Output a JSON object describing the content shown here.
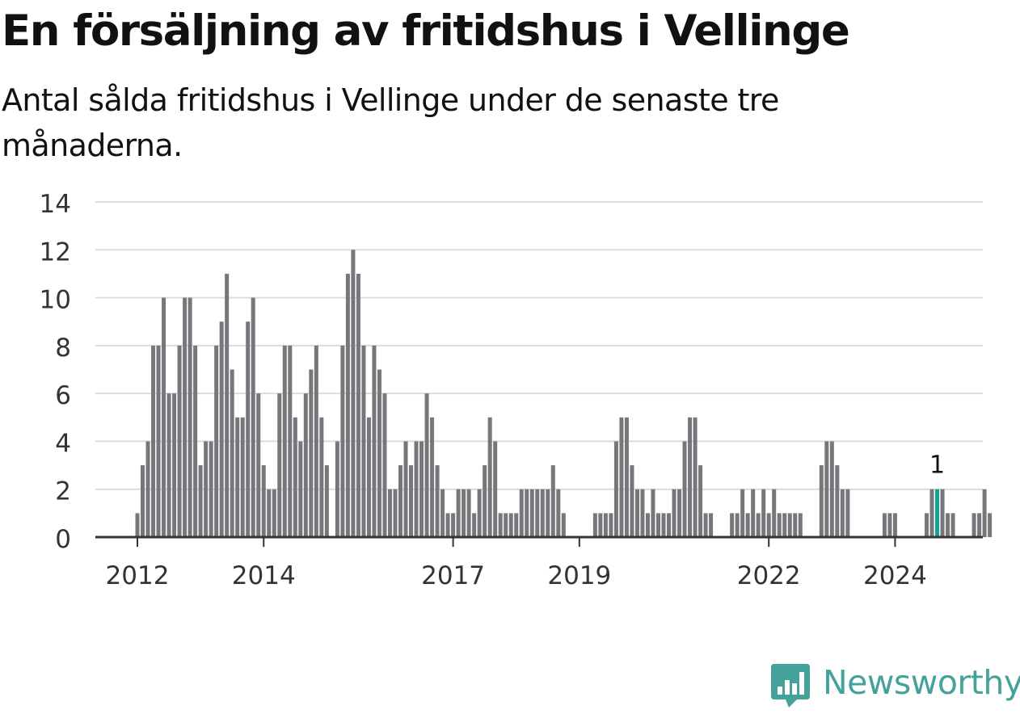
{
  "title": "En försäljning av fritidshus i Vellinge",
  "subtitle": "Antal sålda fritidshus i Vellinge under de senaste tre månaderna.",
  "brand": {
    "name": "Newsworthy",
    "color": "#45a29a",
    "icon": "newsworthy-chart-badge-icon"
  },
  "chart_data": {
    "type": "bar",
    "title": "En försäljning av fritidshus i Vellinge",
    "subtitle": "Antal sålda fritidshus i Vellinge under de senaste tre månaderna.",
    "xlabel": "",
    "ylabel": "",
    "ylim": [
      0,
      14
    ],
    "yticks": [
      0,
      2,
      4,
      6,
      8,
      10,
      12,
      14
    ],
    "grid": true,
    "legend": "none",
    "x_start": "2012-01",
    "x_end": "2024-09",
    "xtick_labels": [
      {
        "label": "2012",
        "date": "2012-01"
      },
      {
        "label": "2014",
        "date": "2014-01"
      },
      {
        "label": "2017",
        "date": "2017-01"
      },
      {
        "label": "2019",
        "date": "2019-01"
      },
      {
        "label": "2022",
        "date": "2022-01"
      },
      {
        "label": "2024",
        "date": "2024-01"
      }
    ],
    "colors": {
      "bar": "#76767b",
      "highlight": "#17a094",
      "grid": "#dcdcdc",
      "axis": "#333333"
    },
    "annotation": {
      "date": "2024-09",
      "text": "1"
    },
    "highlight_date": "2024-09",
    "values": [
      1,
      3,
      4,
      8,
      8,
      10,
      6,
      6,
      8,
      10,
      10,
      8,
      3,
      4,
      4,
      8,
      9,
      11,
      7,
      5,
      5,
      9,
      10,
      6,
      3,
      2,
      2,
      6,
      8,
      8,
      5,
      4,
      6,
      7,
      8,
      5,
      3,
      0,
      4,
      8,
      11,
      12,
      11,
      8,
      5,
      8,
      7,
      6,
      2,
      2,
      3,
      4,
      3,
      4,
      4,
      6,
      5,
      3,
      2,
      1,
      1,
      2,
      2,
      2,
      1,
      2,
      3,
      5,
      4,
      1,
      1,
      1,
      1,
      2,
      2,
      2,
      2,
      2,
      2,
      3,
      2,
      1,
      0,
      0,
      0,
      0,
      0,
      1,
      1,
      1,
      1,
      4,
      5,
      5,
      3,
      2,
      2,
      1,
      2,
      1,
      1,
      1,
      2,
      2,
      4,
      5,
      5,
      3,
      1,
      1,
      0,
      0,
      0,
      1,
      1,
      2,
      1,
      2,
      1,
      2,
      1,
      2,
      1,
      1,
      1,
      1,
      1,
      0,
      0,
      0,
      3,
      4,
      4,
      3,
      2,
      2,
      0,
      0,
      0,
      0,
      0,
      0,
      1,
      1,
      1,
      0,
      0,
      0,
      0,
      0,
      1,
      2,
      2,
      2,
      1,
      1,
      0,
      0,
      0,
      1,
      1,
      2,
      1
    ]
  }
}
